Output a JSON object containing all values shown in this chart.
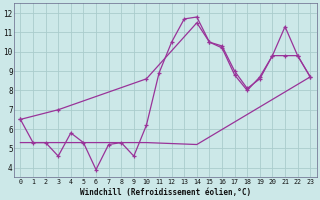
{
  "background_color": "#cce8e8",
  "grid_color": "#aacccc",
  "line_color": "#993399",
  "xlabel": "Windchill (Refroidissement éolien,°C)",
  "ylim": [
    3.5,
    12.5
  ],
  "xlim": [
    -0.5,
    23.5
  ],
  "yticks": [
    4,
    5,
    6,
    7,
    8,
    9,
    10,
    11,
    12
  ],
  "xticks": [
    0,
    1,
    2,
    3,
    4,
    5,
    6,
    7,
    8,
    9,
    10,
    11,
    12,
    13,
    14,
    15,
    16,
    17,
    18,
    19,
    20,
    21,
    22,
    23
  ],
  "line_jagged": {
    "x": [
      0,
      1,
      2,
      3,
      4,
      5,
      6,
      7,
      8,
      9,
      10,
      11,
      12,
      13,
      14,
      15,
      16,
      17,
      18,
      19,
      20,
      21,
      22,
      23
    ],
    "y": [
      6.5,
      5.3,
      5.3,
      4.6,
      5.8,
      5.3,
      3.9,
      5.2,
      5.3,
      4.6,
      6.2,
      8.9,
      10.5,
      11.7,
      11.8,
      10.5,
      10.2,
      8.8,
      8.0,
      8.7,
      9.8,
      9.8,
      9.8,
      8.7
    ]
  },
  "line_upper": {
    "x": [
      0,
      3,
      10,
      14,
      15,
      16,
      17,
      18,
      19,
      20,
      21,
      22,
      23
    ],
    "y": [
      6.5,
      7.0,
      8.6,
      11.5,
      10.5,
      10.3,
      9.0,
      8.1,
      8.6,
      9.8,
      11.3,
      9.8,
      8.7
    ]
  },
  "line_lower": {
    "x": [
      0,
      3,
      10,
      14,
      23
    ],
    "y": [
      5.3,
      5.3,
      5.3,
      5.2,
      8.7
    ]
  }
}
